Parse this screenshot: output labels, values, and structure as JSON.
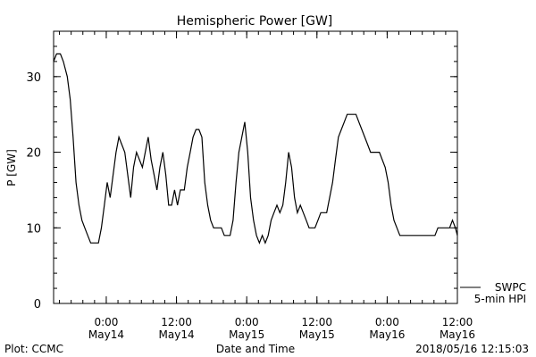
{
  "chart_data": {
    "type": "line",
    "title": "Hemispheric Power [GW]",
    "ylabel": "P [GW]",
    "xlabel": "Date and Time",
    "ylim": [
      0,
      36
    ],
    "yticks": [
      0,
      10,
      20,
      30
    ],
    "xlim": [
      "2018-05-13 15:00",
      "2018-05-16 12:00"
    ],
    "xticks": [
      {
        "time": "2018-05-14 00:00",
        "line1": "0:00",
        "line2": "May14"
      },
      {
        "time": "2018-05-14 12:00",
        "line1": "12:00",
        "line2": "May14"
      },
      {
        "time": "2018-05-15 00:00",
        "line1": "0:00",
        "line2": "May15"
      },
      {
        "time": "2018-05-15 12:00",
        "line1": "12:00",
        "line2": "May15"
      },
      {
        "time": "2018-05-16 00:00",
        "line1": "0:00",
        "line2": "May16"
      },
      {
        "time": "2018-05-16 12:00",
        "line1": "12:00",
        "line2": "May16"
      }
    ],
    "grid": false,
    "legend_position": "bottom-right",
    "series": [
      {
        "name": "SWPC 5-min HPI",
        "color": "#000000",
        "points": [
          [
            "2018-05-13 15:00",
            32
          ],
          [
            "2018-05-13 15:30",
            33
          ],
          [
            "2018-05-13 16:10",
            33
          ],
          [
            "2018-05-13 16:40",
            32
          ],
          [
            "2018-05-13 17:20",
            30
          ],
          [
            "2018-05-13 17:50",
            27
          ],
          [
            "2018-05-13 18:20",
            22
          ],
          [
            "2018-05-13 18:50",
            16
          ],
          [
            "2018-05-13 19:20",
            13
          ],
          [
            "2018-05-13 19:50",
            11
          ],
          [
            "2018-05-13 20:20",
            10
          ],
          [
            "2018-05-13 20:50",
            9
          ],
          [
            "2018-05-13 21:20",
            8
          ],
          [
            "2018-05-13 22:40",
            8
          ],
          [
            "2018-05-13 23:10",
            10
          ],
          [
            "2018-05-13 23:40",
            13
          ],
          [
            "2018-05-14 00:10",
            16
          ],
          [
            "2018-05-14 00:40",
            14
          ],
          [
            "2018-05-14 01:10",
            17
          ],
          [
            "2018-05-14 01:40",
            20
          ],
          [
            "2018-05-14 02:10",
            22
          ],
          [
            "2018-05-14 02:40",
            21
          ],
          [
            "2018-05-14 03:10",
            20
          ],
          [
            "2018-05-14 03:40",
            17
          ],
          [
            "2018-05-14 04:10",
            14
          ],
          [
            "2018-05-14 04:40",
            18
          ],
          [
            "2018-05-14 05:10",
            20
          ],
          [
            "2018-05-14 05:40",
            19
          ],
          [
            "2018-05-14 06:10",
            18
          ],
          [
            "2018-05-14 06:40",
            20
          ],
          [
            "2018-05-14 07:10",
            22
          ],
          [
            "2018-05-14 07:40",
            19
          ],
          [
            "2018-05-14 08:10",
            17
          ],
          [
            "2018-05-14 08:40",
            15
          ],
          [
            "2018-05-14 09:10",
            18
          ],
          [
            "2018-05-14 09:40",
            20
          ],
          [
            "2018-05-14 10:10",
            17
          ],
          [
            "2018-05-14 10:40",
            13
          ],
          [
            "2018-05-14 11:10",
            13
          ],
          [
            "2018-05-14 11:40",
            15
          ],
          [
            "2018-05-14 12:10",
            13
          ],
          [
            "2018-05-14 12:40",
            15
          ],
          [
            "2018-05-14 13:20",
            15
          ],
          [
            "2018-05-14 13:50",
            18
          ],
          [
            "2018-05-14 14:20",
            20
          ],
          [
            "2018-05-14 14:50",
            22
          ],
          [
            "2018-05-14 15:20",
            23
          ],
          [
            "2018-05-14 15:50",
            23
          ],
          [
            "2018-05-14 16:20",
            22
          ],
          [
            "2018-05-14 16:50",
            16
          ],
          [
            "2018-05-14 17:20",
            13
          ],
          [
            "2018-05-14 17:50",
            11
          ],
          [
            "2018-05-14 18:20",
            10
          ],
          [
            "2018-05-14 19:40",
            10
          ],
          [
            "2018-05-14 20:10",
            9
          ],
          [
            "2018-05-14 21:10",
            9
          ],
          [
            "2018-05-14 21:40",
            11
          ],
          [
            "2018-05-14 22:10",
            16
          ],
          [
            "2018-05-14 22:40",
            20
          ],
          [
            "2018-05-14 23:10",
            22
          ],
          [
            "2018-05-14 23:40",
            24
          ],
          [
            "2018-05-15 00:10",
            20
          ],
          [
            "2018-05-15 00:40",
            14
          ],
          [
            "2018-05-15 01:10",
            11
          ],
          [
            "2018-05-15 01:40",
            9
          ],
          [
            "2018-05-15 02:10",
            8
          ],
          [
            "2018-05-15 02:40",
            9
          ],
          [
            "2018-05-15 03:10",
            8
          ],
          [
            "2018-05-15 03:40",
            9
          ],
          [
            "2018-05-15 04:10",
            11
          ],
          [
            "2018-05-15 04:40",
            12
          ],
          [
            "2018-05-15 05:10",
            13
          ],
          [
            "2018-05-15 05:40",
            12
          ],
          [
            "2018-05-15 06:10",
            13
          ],
          [
            "2018-05-15 06:40",
            16
          ],
          [
            "2018-05-15 07:10",
            20
          ],
          [
            "2018-05-15 07:40",
            18
          ],
          [
            "2018-05-15 08:10",
            14
          ],
          [
            "2018-05-15 08:40",
            12
          ],
          [
            "2018-05-15 09:10",
            13
          ],
          [
            "2018-05-15 09:40",
            12
          ],
          [
            "2018-05-15 10:10",
            11
          ],
          [
            "2018-05-15 10:40",
            10
          ],
          [
            "2018-05-15 11:40",
            10
          ],
          [
            "2018-05-15 12:10",
            11
          ],
          [
            "2018-05-15 12:40",
            12
          ],
          [
            "2018-05-15 13:40",
            12
          ],
          [
            "2018-05-15 14:10",
            14
          ],
          [
            "2018-05-15 14:40",
            16
          ],
          [
            "2018-05-15 15:10",
            19
          ],
          [
            "2018-05-15 15:40",
            22
          ],
          [
            "2018-05-15 16:10",
            23
          ],
          [
            "2018-05-15 16:40",
            24
          ],
          [
            "2018-05-15 17:10",
            25
          ],
          [
            "2018-05-15 18:40",
            25
          ],
          [
            "2018-05-15 19:10",
            24
          ],
          [
            "2018-05-15 19:40",
            23
          ],
          [
            "2018-05-15 20:10",
            22
          ],
          [
            "2018-05-15 20:40",
            21
          ],
          [
            "2018-05-15 21:10",
            20
          ],
          [
            "2018-05-15 22:40",
            20
          ],
          [
            "2018-05-15 23:10",
            19
          ],
          [
            "2018-05-15 23:40",
            18
          ],
          [
            "2018-05-16 00:10",
            16
          ],
          [
            "2018-05-16 00:40",
            13
          ],
          [
            "2018-05-16 01:10",
            11
          ],
          [
            "2018-05-16 01:40",
            10
          ],
          [
            "2018-05-16 02:10",
            9
          ],
          [
            "2018-05-16 08:10",
            9
          ],
          [
            "2018-05-16 08:40",
            10
          ],
          [
            "2018-05-16 10:40",
            10
          ],
          [
            "2018-05-16 11:10",
            11
          ],
          [
            "2018-05-16 11:40",
            10
          ],
          [
            "2018-05-16 12:00",
            9
          ]
        ]
      }
    ]
  },
  "legend": {
    "line1": "SWPC",
    "line2": "5-min HPI"
  },
  "footer": {
    "plot_credit": "Plot: CCMC",
    "timestamp": "2018/05/16 12:15:03"
  }
}
